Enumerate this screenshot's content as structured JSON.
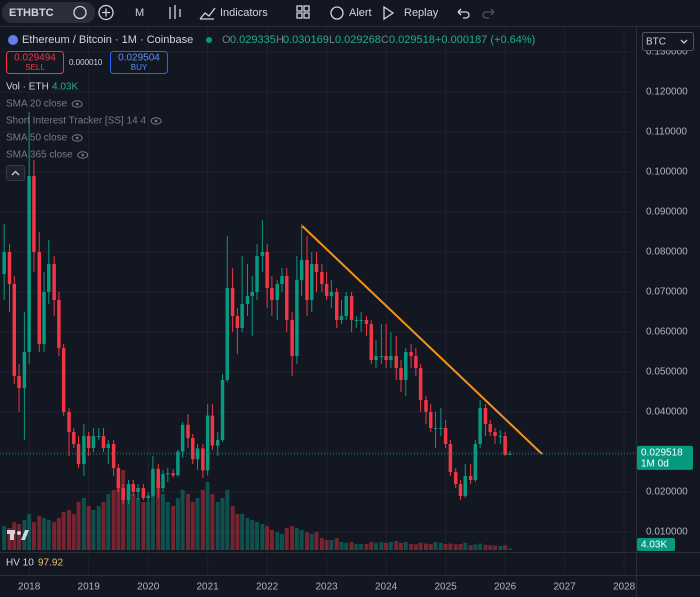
{
  "toolbar": {
    "symbol": "ETHBTC",
    "interval": "M",
    "indicators": "Indicators",
    "alert": "Alert",
    "replay": "Replay"
  },
  "legend": {
    "title": "Ethereum / Bitcoin · 1M · Coinbase",
    "open_label": "O",
    "high_label": "H",
    "low_label": "L",
    "close_label": "C",
    "change": "+0.000187 (+0.64%)"
  },
  "trade": {
    "sell_price": "0.029494",
    "sell": "SELL",
    "spread": "0.000010",
    "buy_price": "0.029504",
    "buy": "BUY"
  },
  "indicators": [
    "SMA 20 close",
    "Short Interest Tracker [SS] 14 4",
    "SMA 50 close",
    "SMA 365 close"
  ],
  "currency": "BTC",
  "hv": {
    "name": "HV 10",
    "value": "97.92"
  },
  "chart_data": {
    "type": "candlestick",
    "up_color": "#089981",
    "down_color": "#f23645",
    "x": [
      2017.58,
      2017.67,
      2017.75,
      2017.83,
      2017.92,
      2018,
      2018.08,
      2018.17,
      2018.25,
      2018.33,
      2018.42,
      2018.5,
      2018.58,
      2018.67,
      2018.75,
      2018.83,
      2018.92,
      2019,
      2019.08,
      2019.17,
      2019.25,
      2019.33,
      2019.42,
      2019.5,
      2019.58,
      2019.67,
      2019.75,
      2019.83,
      2019.92,
      2020,
      2020.08,
      2020.17,
      2020.25,
      2020.33,
      2020.42,
      2020.5,
      2020.58,
      2020.67,
      2020.75,
      2020.83,
      2020.92,
      2021,
      2021.08,
      2021.17,
      2021.25,
      2021.33,
      2021.42,
      2021.5,
      2021.58,
      2021.67,
      2021.75,
      2021.83,
      2021.92,
      2022,
      2022.08,
      2022.17,
      2022.25,
      2022.33,
      2022.42,
      2022.5,
      2022.58,
      2022.67,
      2022.75,
      2022.83,
      2022.92,
      2023,
      2023.08,
      2023.17,
      2023.25,
      2023.33,
      2023.42,
      2023.5,
      2023.58,
      2023.67,
      2023.75,
      2023.83,
      2023.92,
      2024,
      2024.08,
      2024.17,
      2024.25,
      2024.33,
      2024.42,
      2024.5,
      2024.58,
      2024.67,
      2024.75,
      2024.83,
      2024.92,
      2025,
      2025.08,
      2025.17,
      2025.25,
      2025.33,
      2025.42,
      2025.5,
      2025.58,
      2025.67,
      2025.75,
      2025.83,
      2025.92,
      2026,
      2026.08
    ],
    "open": [
      0.0745,
      0.08,
      0.072,
      0.049,
      0.046,
      0.055,
      0.099,
      0.08,
      0.057,
      0.07,
      0.077,
      0.068,
      0.056,
      0.04,
      0.035,
      0.032,
      0.027,
      0.034,
      0.031,
      0.034,
      0.034,
      0.031,
      0.032,
      0.026,
      0.021,
      0.018,
      0.022,
      0.02,
      0.021,
      0.0185,
      0.0191,
      0.0258,
      0.021,
      0.0245,
      0.0247,
      0.0242,
      0.0301,
      0.0368,
      0.0335,
      0.0282,
      0.0309,
      0.0254,
      0.0391,
      0.0316,
      0.033,
      0.048,
      0.071,
      0.064,
      0.061,
      0.067,
      0.069,
      0.07,
      0.079,
      0.08,
      0.071,
      0.068,
      0.072,
      0.074,
      0.063,
      0.054,
      0.073,
      0.078,
      0.068,
      0.077,
      0.075,
      0.072,
      0.069,
      0.07,
      0.063,
      0.064,
      0.069,
      0.063,
      0.063,
      0.063,
      0.062,
      0.053,
      0.054,
      0.054,
      0.053,
      0.054,
      0.051,
      0.048,
      0.055,
      0.054,
      0.051,
      0.043,
      0.04,
      0.036,
      0.036,
      0.036,
      0.032,
      0.025,
      0.022,
      0.019,
      0.024,
      0.023,
      0.032,
      0.041,
      0.037,
      0.035,
      0.034,
      0.034,
      0.029335
    ],
    "high": [
      0.087,
      0.082,
      0.074,
      0.052,
      0.065,
      0.115,
      0.103,
      0.085,
      0.075,
      0.083,
      0.079,
      0.07,
      0.057,
      0.041,
      0.036,
      0.034,
      0.037,
      0.035,
      0.036,
      0.036,
      0.036,
      0.033,
      0.033,
      0.027,
      0.022,
      0.023,
      0.023,
      0.022,
      0.022,
      0.02,
      0.029,
      0.027,
      0.0255,
      0.026,
      0.0258,
      0.0305,
      0.0375,
      0.0395,
      0.0345,
      0.032,
      0.032,
      0.042,
      0.042,
      0.035,
      0.0495,
      0.084,
      0.076,
      0.066,
      0.079,
      0.077,
      0.074,
      0.082,
      0.088,
      0.082,
      0.074,
      0.073,
      0.076,
      0.076,
      0.065,
      0.079,
      0.087,
      0.084,
      0.08,
      0.08,
      0.077,
      0.075,
      0.073,
      0.071,
      0.068,
      0.07,
      0.07,
      0.064,
      0.065,
      0.064,
      0.063,
      0.058,
      0.062,
      0.062,
      0.06,
      0.059,
      0.053,
      0.056,
      0.057,
      0.056,
      0.052,
      0.044,
      0.042,
      0.04,
      0.041,
      0.038,
      0.033,
      0.026,
      0.023,
      0.027,
      0.027,
      0.033,
      0.043,
      0.042,
      0.038,
      0.036,
      0.0355,
      0.035,
      0.030169
    ],
    "low": [
      0.068,
      0.065,
      0.047,
      0.04,
      0.033,
      0.052,
      0.075,
      0.055,
      0.055,
      0.067,
      0.064,
      0.054,
      0.039,
      0.029,
      0.031,
      0.026,
      0.024,
      0.029,
      0.03,
      0.033,
      0.03,
      0.027,
      0.024,
      0.02,
      0.017,
      0.017,
      0.019,
      0.018,
      0.018,
      0.0175,
      0.0188,
      0.0185,
      0.02,
      0.0225,
      0.0236,
      0.0238,
      0.0285,
      0.031,
      0.027,
      0.0255,
      0.0235,
      0.0242,
      0.0305,
      0.029,
      0.0325,
      0.0475,
      0.06,
      0.0545,
      0.06,
      0.064,
      0.059,
      0.068,
      0.075,
      0.066,
      0.064,
      0.063,
      0.07,
      0.06,
      0.049,
      0.052,
      0.069,
      0.064,
      0.065,
      0.07,
      0.07,
      0.068,
      0.066,
      0.061,
      0.062,
      0.063,
      0.06,
      0.061,
      0.06,
      0.059,
      0.052,
      0.051,
      0.052,
      0.051,
      0.051,
      0.048,
      0.045,
      0.044,
      0.051,
      0.049,
      0.04,
      0.037,
      0.035,
      0.031,
      0.034,
      0.031,
      0.024,
      0.021,
      0.018,
      0.0185,
      0.022,
      0.0225,
      0.031,
      0.034,
      0.034,
      0.032,
      0.032,
      0.029,
      0.029268
    ],
    "close": [
      0.08,
      0.072,
      0.049,
      0.046,
      0.055,
      0.099,
      0.08,
      0.057,
      0.07,
      0.077,
      0.068,
      0.056,
      0.04,
      0.035,
      0.032,
      0.027,
      0.034,
      0.031,
      0.034,
      0.034,
      0.031,
      0.032,
      0.026,
      0.021,
      0.018,
      0.022,
      0.02,
      0.021,
      0.0185,
      0.0191,
      0.0258,
      0.021,
      0.0245,
      0.0247,
      0.0242,
      0.0301,
      0.0368,
      0.0335,
      0.0282,
      0.0309,
      0.0254,
      0.0391,
      0.0316,
      0.033,
      0.048,
      0.071,
      0.064,
      0.061,
      0.067,
      0.069,
      0.07,
      0.079,
      0.08,
      0.071,
      0.068,
      0.072,
      0.074,
      0.063,
      0.054,
      0.073,
      0.078,
      0.068,
      0.077,
      0.075,
      0.072,
      0.069,
      0.07,
      0.063,
      0.064,
      0.069,
      0.063,
      0.063,
      0.063,
      0.062,
      0.053,
      0.054,
      0.054,
      0.053,
      0.054,
      0.051,
      0.048,
      0.055,
      0.054,
      0.051,
      0.043,
      0.04,
      0.036,
      0.036,
      0.036,
      0.032,
      0.025,
      0.022,
      0.019,
      0.024,
      0.023,
      0.032,
      0.041,
      0.037,
      0.035,
      0.034,
      0.034,
      0.0293,
      0.029518
    ],
    "volume": {
      "name": "Vol · ETH",
      "last_label": "4.03K",
      "values": [
        60000,
        55000,
        70000,
        65000,
        75000,
        90000,
        70000,
        85000,
        80000,
        75000,
        70000,
        80000,
        95000,
        100000,
        90000,
        120000,
        130000,
        110000,
        100000,
        110000,
        120000,
        140000,
        150000,
        170000,
        200000,
        160000,
        140000,
        130000,
        120000,
        120000,
        190000,
        170000,
        140000,
        120000,
        110000,
        130000,
        150000,
        140000,
        120000,
        130000,
        150000,
        170000,
        140000,
        120000,
        130000,
        150000,
        110000,
        90000,
        90000,
        80000,
        75000,
        70000,
        65000,
        60000,
        50000,
        45000,
        40000,
        55000,
        60000,
        55000,
        50000,
        45000,
        40000,
        45000,
        30000,
        25000,
        25000,
        30000,
        20000,
        18000,
        20000,
        15000,
        15000,
        15000,
        20000,
        18000,
        20000,
        18000,
        20000,
        22000,
        18000,
        20000,
        15000,
        14000,
        18000,
        16000,
        15000,
        20000,
        18000,
        15000,
        16000,
        14000,
        15000,
        18000,
        12000,
        14000,
        16000,
        13000,
        12000,
        11000,
        10000,
        12000,
        4030
      ]
    },
    "trendline": {
      "x": [
        2022.59,
        2026.62
      ],
      "y": [
        0.0865,
        0.0295
      ],
      "color": "#f7931a"
    },
    "last_bar_label": "1M 0d",
    "xlim": [
      2017.51,
      2028.2
    ],
    "xticks": [
      2018,
      2019,
      2020,
      2021,
      2022,
      2023,
      2024,
      2025,
      2026,
      2027,
      2028
    ],
    "ylim": [
      0.0055,
      0.1355
    ],
    "yticks": [
      {
        "value": 0.01,
        "label": "0.010000"
      },
      {
        "value": 0.02,
        "label": "0.020000"
      },
      {
        "value": 0.03,
        "label": "0.030000"
      },
      {
        "value": 0.04,
        "label": "0.040000"
      },
      {
        "value": 0.05,
        "label": "0.050000"
      },
      {
        "value": 0.06,
        "label": "0.060000"
      },
      {
        "value": 0.07,
        "label": "0.070000"
      },
      {
        "value": 0.08,
        "label": "0.080000"
      },
      {
        "value": 0.09,
        "label": "0.090000"
      },
      {
        "value": 0.1,
        "label": "0.100000"
      },
      {
        "value": 0.11,
        "label": "0.110000"
      },
      {
        "value": 0.12,
        "label": "0.120000"
      },
      {
        "value": 0.13,
        "label": "0.130000"
      }
    ],
    "grid": true
  }
}
